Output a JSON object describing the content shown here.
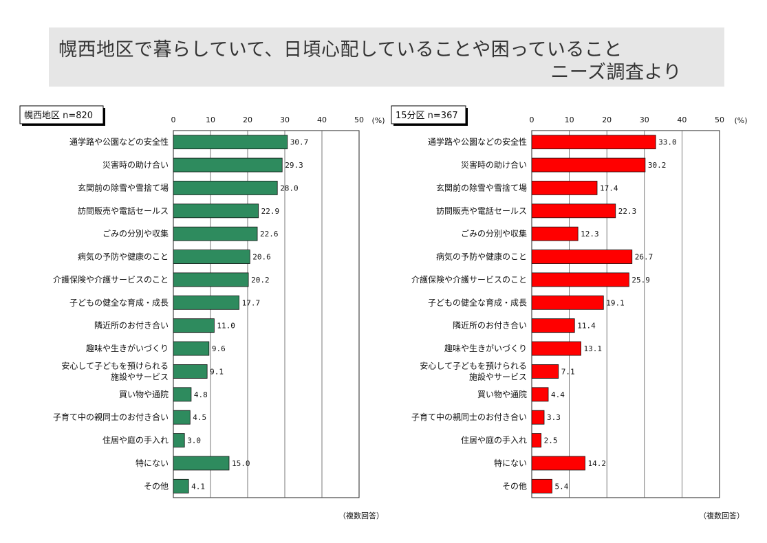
{
  "title": {
    "line1": "幌西地区で暮らしていて、日頃心配していることや困っていること",
    "line2": "ニーズ調査より"
  },
  "unit_label": "(%)",
  "footnote": "（複数回答）",
  "categories": [
    "通学路や公園などの安全性",
    "災害時の助け合い",
    "玄関前の除雪や雪捨て場",
    "訪問販売や電話セールス",
    "ごみの分別や収集",
    "病気の予防や健康のこと",
    "介護保険や介護サービスのこと",
    "子どもの健全な育成・成長",
    "隣近所のお付き合い",
    "趣味や生きがいづくり",
    "安心して子どもを預けられる\n施設やサービス",
    "買い物や通院",
    "子育て中の親同士のお付き合い",
    "住居や庭の手入れ",
    "特にない",
    "その他"
  ],
  "chart_data": [
    {
      "type": "bar",
      "orientation": "horizontal",
      "title": "幌西地区 n=820",
      "bar_color": "#2e8b5e",
      "xlim": [
        0,
        50
      ],
      "ticks": [
        0,
        10,
        20,
        30,
        40,
        50
      ],
      "grid": true,
      "values": [
        30.7,
        29.3,
        28.0,
        22.9,
        22.6,
        20.6,
        20.2,
        17.7,
        11.0,
        9.6,
        9.1,
        4.8,
        4.5,
        3.0,
        15.0,
        4.1
      ]
    },
    {
      "type": "bar",
      "orientation": "horizontal",
      "title": "15分区 n=367",
      "bar_color": "#ff0000",
      "xlim": [
        0,
        50
      ],
      "ticks": [
        0,
        10,
        20,
        30,
        40,
        50
      ],
      "grid": true,
      "values": [
        33.0,
        30.2,
        17.4,
        22.3,
        12.3,
        26.7,
        25.9,
        19.1,
        11.4,
        13.1,
        7.1,
        4.4,
        3.3,
        2.5,
        14.2,
        5.4
      ]
    }
  ]
}
